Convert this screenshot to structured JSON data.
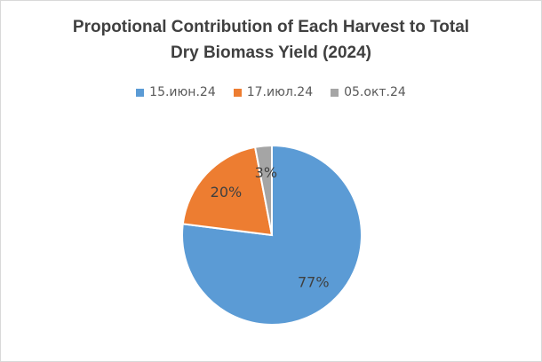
{
  "chart_data": {
    "type": "pie",
    "title": "Propotional Contribution of Each Harvest to Total Dry Biomass Yield (2024)",
    "title_lines": [
      "Propotional Contribution of Each Harvest to Total",
      "Dry Biomass Yield (2024)"
    ],
    "legend_position": "top",
    "categories": [
      "15.июн.24",
      "17.июл.24",
      "05.окт.24"
    ],
    "values": [
      77,
      20,
      3
    ],
    "data_labels": [
      "77%",
      "20%",
      "3%"
    ],
    "colors": [
      "#5b9bd5",
      "#ed7d31",
      "#a5a5a5"
    ]
  }
}
